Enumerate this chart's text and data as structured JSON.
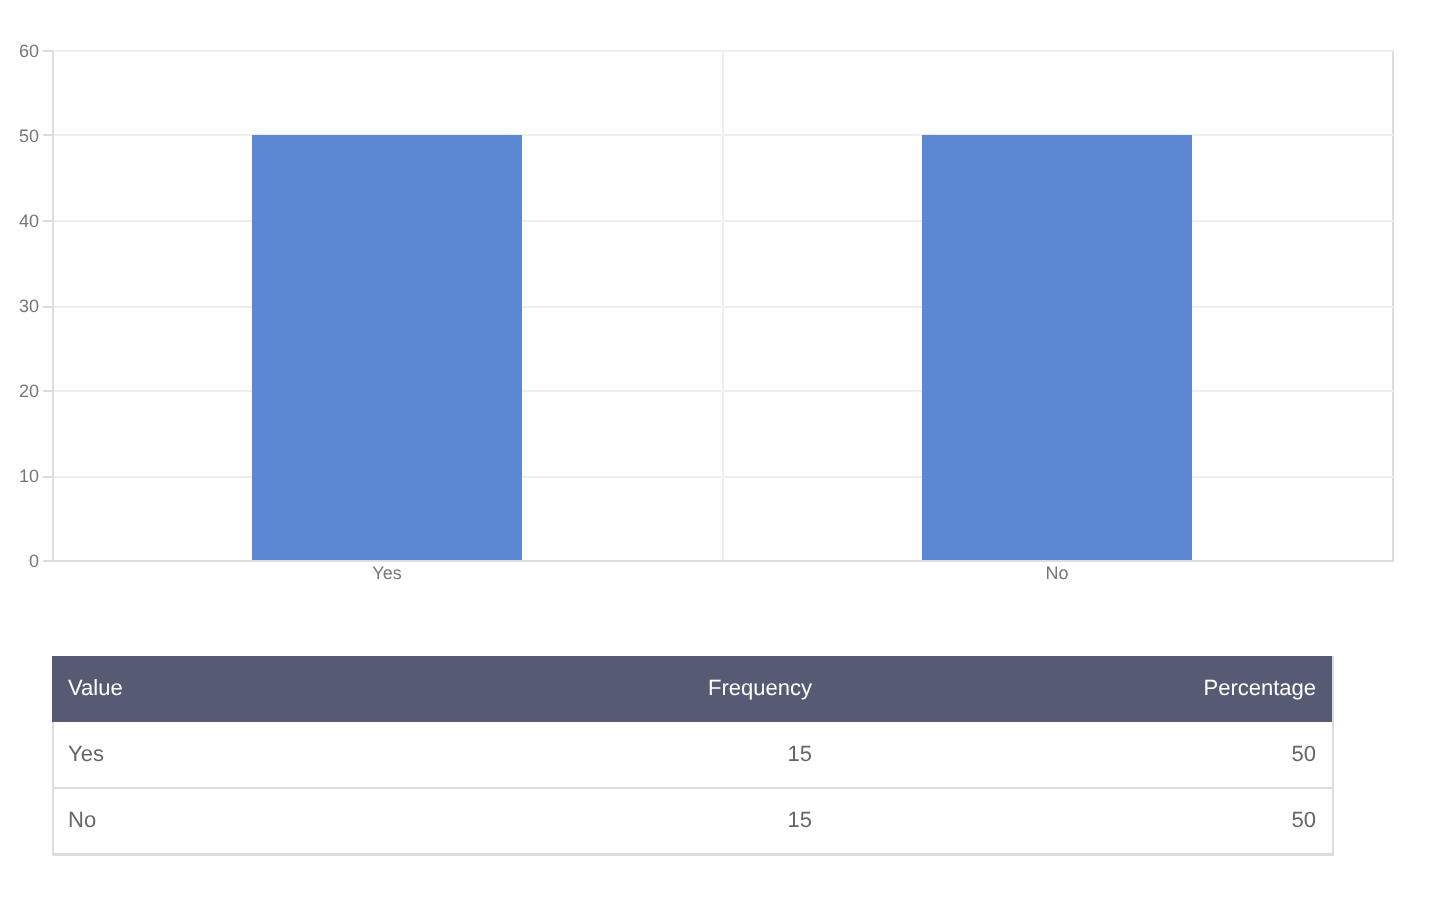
{
  "chart_data": {
    "type": "bar",
    "categories": [
      "Yes",
      "No"
    ],
    "values": [
      50,
      50
    ],
    "color": "#5b87d3",
    "ylim": [
      0,
      60
    ],
    "yticks": [
      0,
      10,
      20,
      30,
      40,
      50,
      60
    ],
    "grid": true,
    "annotations": [
      "Value",
      "Frequency",
      "Percentage",
      "Yes",
      "15",
      "50",
      "No",
      "15",
      "50"
    ]
  }
}
